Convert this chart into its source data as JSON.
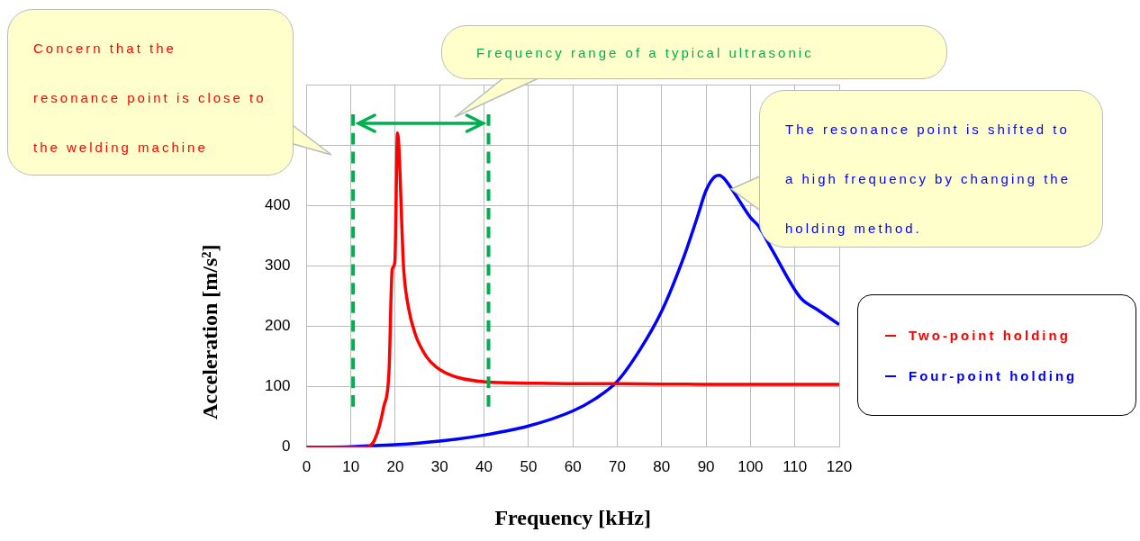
{
  "chart_data": {
    "type": "line",
    "xlabel": "Frequency [kHz]",
    "ylabel": "Acceleration [m/s²]",
    "xlim": [
      0,
      120
    ],
    "xticks": [
      0,
      10,
      20,
      30,
      40,
      50,
      60,
      70,
      80,
      90,
      100,
      110,
      120
    ],
    "ylim": [
      0,
      600
    ],
    "yticks": [
      0,
      100,
      200,
      300,
      400,
      {
        "value": 500,
        "label": null
      },
      {
        "value": 600,
        "label": null
      }
    ],
    "grid": true,
    "legend": "right",
    "marker": "none",
    "line_style": "solid",
    "series": [
      {
        "name": "Two-point holding",
        "color": "#ff0000",
        "x": [
          0,
          10,
          13,
          15.4,
          17.4,
          18.6,
          19.3,
          19.9,
          20.5,
          21.9,
          23,
          24.5,
          27,
          29.2,
          33,
          40.3,
          50,
          60,
          70,
          90,
          120
        ],
        "values": [
          0,
          0,
          0,
          13,
          67,
          127,
          294,
          306,
          520,
          294,
          230,
          187,
          150,
          133,
          118,
          108,
          106,
          105,
          105,
          104,
          104
        ]
      },
      {
        "name": "Four-point holding",
        "color": "#0000ff",
        "x": [
          0,
          10,
          20,
          30,
          40,
          50,
          60,
          65,
          70,
          75,
          80,
          85,
          88,
          90,
          92,
          93,
          94,
          96,
          100,
          101.8,
          105,
          111.3,
          115,
          120
        ],
        "values": [
          0,
          1,
          4,
          10,
          20,
          35,
          60,
          80,
          109,
          160,
          225,
          315,
          380,
          425,
          448,
          450,
          445,
          425,
          380,
          366,
          325,
          247,
          228,
          203
        ]
      }
    ],
    "ref_lines": [
      {
        "axis": "x",
        "value": 10.5,
        "color": "#00b050",
        "line_style": "dashed"
      },
      {
        "axis": "x",
        "value": 41,
        "color": "#00b050",
        "line_style": "dashed"
      }
    ],
    "annotations": [
      "Concern that the resonance point is close to the welding machine",
      "Frequency range of a typical ultrasonic",
      "The resonance point is shifted to a high frequency by changing the holding method."
    ]
  }
}
